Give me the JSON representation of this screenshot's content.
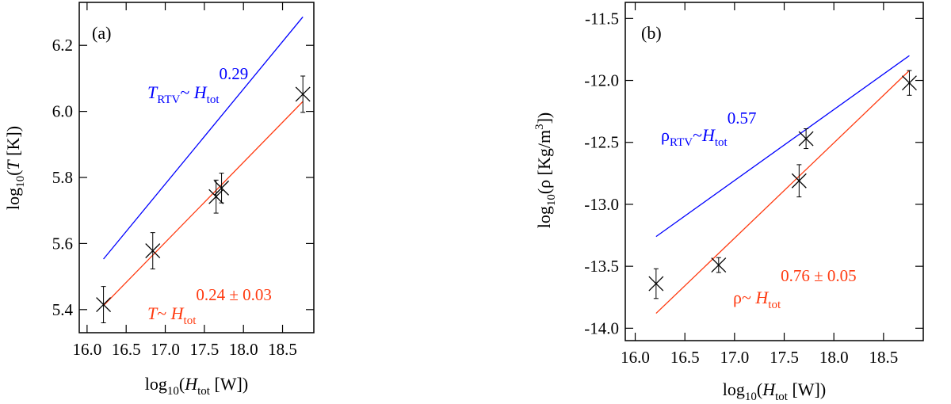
{
  "chart_data": [
    {
      "type": "scatter",
      "panel_label": "(a)",
      "xlabel": {
        "prefix": "log",
        "base": "10",
        "open": "(",
        "var": "H",
        "sub": "tot",
        "unit": " [W])"
      },
      "ylabel": {
        "prefix": "log",
        "base": "10",
        "open": "(",
        "var": "T",
        "unit": " [K])"
      },
      "xlim": [
        15.9,
        18.9
      ],
      "ylim": [
        5.33,
        6.33
      ],
      "x_ticks": [
        "16.0",
        "16.5",
        "17.0",
        "17.5",
        "18.0",
        "18.5"
      ],
      "y_ticks": [
        "5.4",
        "5.6",
        "5.8",
        "6.0",
        "6.2"
      ],
      "x_tick_values": [
        16.0,
        16.5,
        17.0,
        17.5,
        18.0,
        18.5
      ],
      "y_tick_values": [
        5.4,
        5.6,
        5.8,
        6.0,
        6.2
      ],
      "points": [
        {
          "x": 16.21,
          "y": 5.415,
          "err": 0.055
        },
        {
          "x": 16.84,
          "y": 5.578,
          "err": 0.055
        },
        {
          "x": 17.65,
          "y": 5.742,
          "err": 0.05
        },
        {
          "x": 17.72,
          "y": 5.768,
          "err": 0.045
        },
        {
          "x": 18.76,
          "y": 6.052,
          "err": 0.055
        }
      ],
      "series": [
        {
          "name": "RTV",
          "color": "#0000ff",
          "x": [
            16.21,
            18.76
          ],
          "y": [
            5.553,
            6.286
          ]
        },
        {
          "name": "fit",
          "color": "#ff3a10",
          "x": [
            16.21,
            18.76
          ],
          "y": [
            5.412,
            6.03
          ]
        }
      ],
      "annotations": {
        "blue": {
          "var": "T",
          "sub": "RTV",
          "sep": "~ ",
          "hvar": "H",
          "hsub": "tot",
          "exp": "0.29",
          "color": "#0000ff"
        },
        "red": {
          "var": "T",
          "sub": "",
          "sep": "~ ",
          "hvar": "H",
          "hsub": "tot",
          "exp": "0.24 ± 0.03",
          "color": "#ff3a10"
        }
      }
    },
    {
      "type": "scatter",
      "panel_label": "(b)",
      "xlabel": {
        "prefix": "log",
        "base": "10",
        "open": "(",
        "var": "H",
        "sub": "tot",
        "unit": " [W])"
      },
      "ylabel": {
        "prefix": "log",
        "base": "10",
        "open": "(",
        "var": "ρ",
        "unit": " [Kg/m",
        "unit_sup": "3",
        "close": "])"
      },
      "xlim": [
        15.9,
        18.9
      ],
      "ylim": [
        -14.1,
        -11.37
      ],
      "x_ticks": [
        "16.0",
        "16.5",
        "17.0",
        "17.5",
        "18.0",
        "18.5"
      ],
      "y_ticks": [
        "-14.0",
        "-13.5",
        "-13.0",
        "-12.5",
        "-12.0",
        "-11.5"
      ],
      "x_tick_values": [
        16.0,
        16.5,
        17.0,
        17.5,
        18.0,
        18.5
      ],
      "y_tick_values": [
        -14.0,
        -13.5,
        -13.0,
        -12.5,
        -12.0,
        -11.5
      ],
      "points": [
        {
          "x": 16.21,
          "y": -13.64,
          "err": 0.12
        },
        {
          "x": 16.84,
          "y": -13.49,
          "err": 0.06
        },
        {
          "x": 17.65,
          "y": -12.81,
          "err": 0.13
        },
        {
          "x": 17.72,
          "y": -12.47,
          "err": 0.08
        },
        {
          "x": 18.76,
          "y": -12.02,
          "err": 0.1
        }
      ],
      "series": [
        {
          "name": "RTV",
          "color": "#0000ff",
          "x": [
            16.21,
            18.76
          ],
          "y": [
            -13.26,
            -11.8
          ]
        },
        {
          "name": "fit",
          "color": "#ff3a10",
          "x": [
            16.21,
            18.76
          ],
          "y": [
            -13.88,
            -11.92
          ]
        }
      ],
      "annotations": {
        "blue": {
          "var": "ρ",
          "sub": "RTV",
          "sep": "~",
          "hvar": "H",
          "hsub": "tot",
          "exp": "0.57",
          "color": "#0000ff"
        },
        "red": {
          "var": "ρ",
          "sub": "",
          "sep": "~ ",
          "hvar": "H",
          "hsub": "tot",
          "exp": "0.76 ± 0.05",
          "color": "#ff3a10"
        }
      }
    }
  ]
}
